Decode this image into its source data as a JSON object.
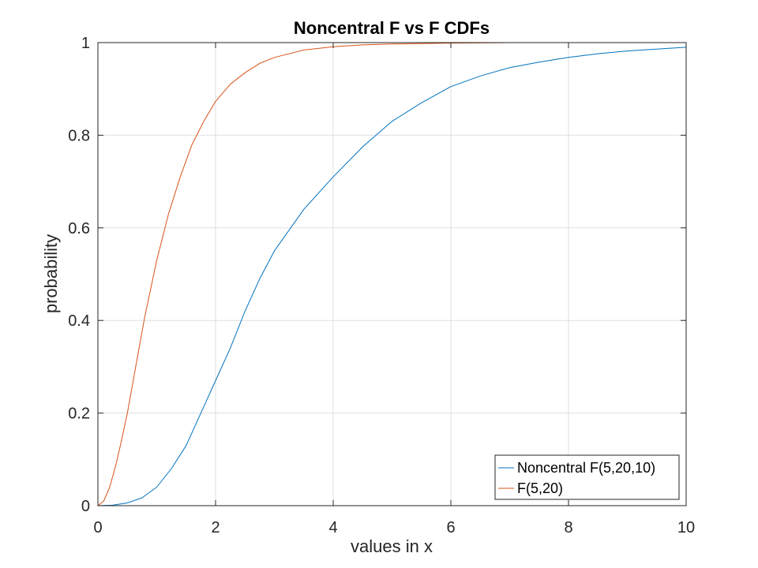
{
  "chart_data": {
    "type": "line",
    "title": "Noncentral F vs F CDFs",
    "xlabel": "values in x",
    "ylabel": "probability",
    "xlim": [
      0,
      10
    ],
    "ylim": [
      0,
      1
    ],
    "xticks": [
      "0",
      "2",
      "4",
      "6",
      "8",
      "10"
    ],
    "yticks": [
      "0",
      "0.2",
      "0.4",
      "0.6",
      "0.8",
      "1"
    ],
    "grid": true,
    "legend_position": "bottom-right",
    "series": [
      {
        "name": "Noncentral F(5,20,10)",
        "color": "#0072BD",
        "x": [
          0,
          0.25,
          0.5,
          0.75,
          1,
          1.25,
          1.5,
          1.75,
          2,
          2.25,
          2.5,
          2.75,
          3,
          3.5,
          4,
          4.5,
          5,
          5.5,
          6,
          6.5,
          7,
          7.5,
          8,
          8.5,
          9,
          9.5,
          10
        ],
        "y": [
          0,
          0.001,
          0.006,
          0.017,
          0.04,
          0.08,
          0.13,
          0.2,
          0.27,
          0.34,
          0.42,
          0.49,
          0.55,
          0.64,
          0.71,
          0.775,
          0.83,
          0.87,
          0.905,
          0.928,
          0.946,
          0.958,
          0.968,
          0.976,
          0.982,
          0.986,
          0.99
        ]
      },
      {
        "name": "F(5,20)",
        "color": "#D95319",
        "x": [
          0,
          0.1,
          0.2,
          0.3,
          0.4,
          0.5,
          0.6,
          0.7,
          0.8,
          0.9,
          1,
          1.2,
          1.4,
          1.6,
          1.8,
          2,
          2.25,
          2.5,
          2.75,
          3,
          3.5,
          4,
          4.5,
          5,
          6,
          7,
          8,
          9,
          10
        ],
        "y": [
          0,
          0.01,
          0.04,
          0.085,
          0.14,
          0.2,
          0.27,
          0.34,
          0.41,
          0.47,
          0.53,
          0.63,
          0.71,
          0.78,
          0.83,
          0.873,
          0.91,
          0.935,
          0.955,
          0.968,
          0.984,
          0.991,
          0.995,
          0.997,
          0.999,
          1.0,
          1.0,
          1.0,
          1.0
        ]
      }
    ]
  }
}
